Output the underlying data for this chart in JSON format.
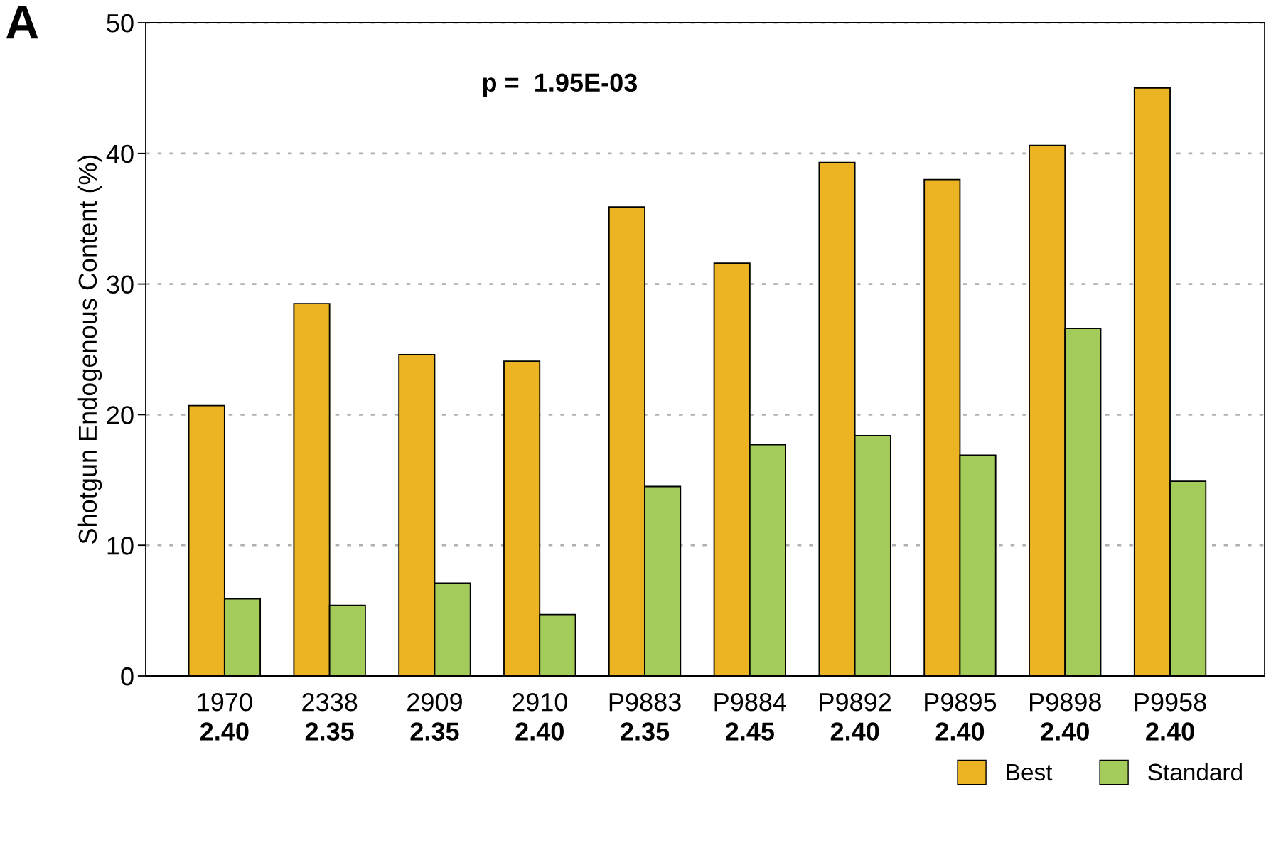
{
  "chart_data": {
    "type": "bar",
    "ylabel": "Shotgun Endogenous Content (%)",
    "categories": [
      "1970\n2.40",
      "2338\n2.35",
      "2909\n2.35",
      "2910\n2.40",
      "P9883\n2.35",
      "P9884\n2.45",
      "P9892\n2.40",
      "P9895\n2.40",
      "P9898\n2.40",
      "P9958\n2.40"
    ],
    "series": [
      {
        "name": "Best",
        "color": "#ecb323",
        "values": [
          20.7,
          28.5,
          24.6,
          24.1,
          35.9,
          31.6,
          39.3,
          38.0,
          40.6,
          45.0
        ]
      },
      {
        "name": "Standard",
        "color": "#a3cc5b",
        "values": [
          5.9,
          5.4,
          7.1,
          4.7,
          14.5,
          17.7,
          18.4,
          16.9,
          26.6,
          14.9
        ]
      }
    ],
    "ylim": [
      0,
      50
    ],
    "yticks": [
      0,
      10,
      20,
      30,
      40,
      50
    ],
    "grid": "y",
    "legend": "bottom right",
    "annotations": [
      "A",
      {
        "text": "p =  1.95E-03"
      }
    ]
  }
}
